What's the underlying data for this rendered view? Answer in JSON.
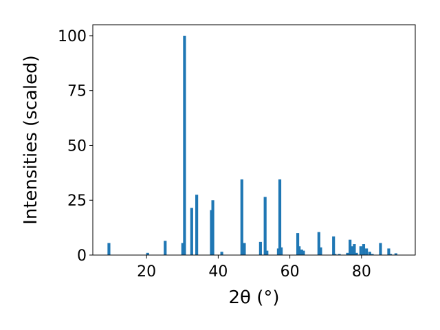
{
  "chart_data": {
    "type": "bar",
    "title": "",
    "xlabel": "2θ (°)",
    "ylabel": "Intensities (scaled)",
    "xlim": [
      5,
      95
    ],
    "ylim": [
      0,
      105
    ],
    "xticks": [
      20,
      40,
      60,
      80
    ],
    "yticks": [
      0,
      25,
      50,
      75,
      100
    ],
    "grid": false,
    "legend": "none",
    "bar_width": 0.8,
    "color": "#1f77b4",
    "series": [
      {
        "x": [
          9.5,
          20.3,
          25.2,
          30.1,
          30.6,
          32.6,
          34.0,
          38.1,
          38.5,
          41.0,
          46.6,
          47.3,
          51.8,
          53.1,
          53.6,
          56.8,
          57.2,
          57.6,
          62.2,
          62.6,
          63.3,
          63.8,
          68.1,
          68.6,
          72.2,
          72.6,
          73.8,
          76.1,
          76.8,
          77.3,
          78.0,
          78.6,
          79.8,
          80.6,
          81.4,
          82.3,
          83.0,
          85.3,
          87.6,
          88.1,
          89.6
        ],
        "values": [
          5.5,
          1,
          6.5,
          5.5,
          100,
          21.5,
          27.5,
          20.5,
          25,
          1.5,
          34.5,
          5.5,
          6,
          26.5,
          2,
          3,
          34.5,
          3.5,
          10,
          4,
          2.5,
          2,
          10.5,
          3.5,
          8.5,
          0.5,
          0.5,
          1,
          7,
          4,
          5,
          1,
          4,
          5,
          3,
          1.5,
          0.5,
          5.5,
          3,
          0.5,
          0.8
        ]
      }
    ]
  }
}
